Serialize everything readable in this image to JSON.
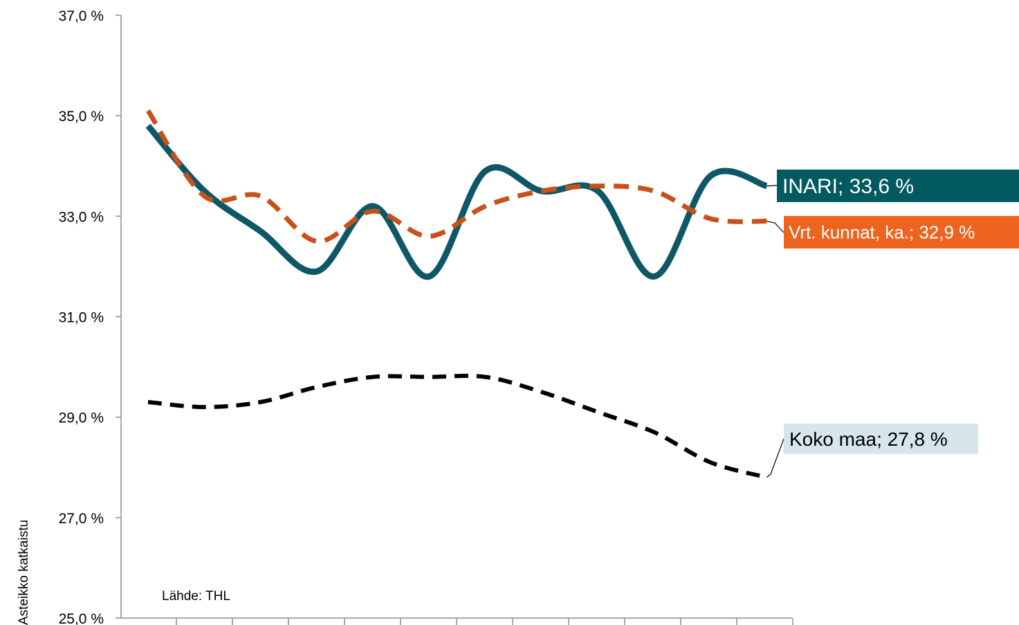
{
  "chart_data": {
    "type": "line",
    "ylabel": "Asteikko katkaistu",
    "ylim": [
      25.0,
      37.0
    ],
    "yticks": [
      "25,0 %",
      "27,0 %",
      "29,0 %",
      "31,0 %",
      "33,0 %",
      "35,0 %",
      "37,0 %"
    ],
    "x": [
      1,
      2,
      3,
      4,
      5,
      6,
      7,
      8,
      9,
      10,
      11,
      12
    ],
    "xtick_labels": [],
    "grid": false,
    "annotation": "Lähde: THL",
    "series": [
      {
        "name": "INARI",
        "end_label": "INARI; 33,6 %",
        "style": "solid",
        "color": "#0e5766",
        "label_bg": "#005a5f",
        "label_fg": "#ffffff",
        "values": [
          34.8,
          33.5,
          32.7,
          31.9,
          33.2,
          31.8,
          33.9,
          33.5,
          33.5,
          31.8,
          33.8,
          33.6
        ]
      },
      {
        "name": "Vrt. kunnat, ka.",
        "end_label": "Vrt. kunnat, ka.; 32,9 %",
        "style": "dashed",
        "color": "#c8511b",
        "label_bg": "#ec6420",
        "label_fg": "#ffffff",
        "values": [
          35.1,
          33.4,
          33.4,
          32.5,
          33.1,
          32.6,
          33.2,
          33.5,
          33.6,
          33.5,
          32.95,
          32.9
        ]
      },
      {
        "name": "Koko maa",
        "end_label": "Koko maa; 27,8 %",
        "style": "dashed",
        "color": "#000000",
        "label_bg": "#d6e6ec",
        "label_fg": "#000000",
        "values": [
          29.3,
          29.2,
          29.3,
          29.6,
          29.8,
          29.8,
          29.8,
          29.5,
          29.1,
          28.7,
          28.1,
          27.8
        ]
      }
    ]
  }
}
